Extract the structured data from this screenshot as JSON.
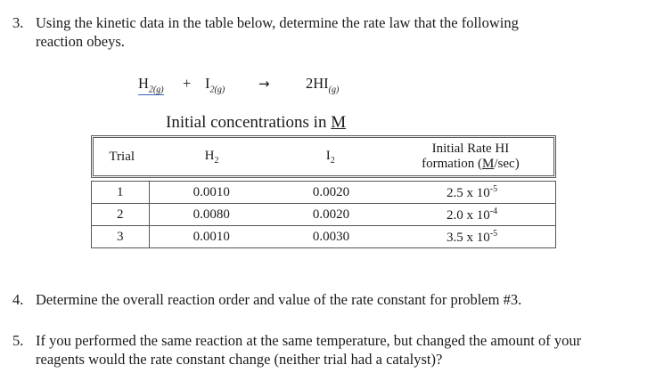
{
  "question3": {
    "number": "3.",
    "line1": "Using the kinetic data in the table below, determine the rate law that the following",
    "line2": "reaction obeys."
  },
  "equation": {
    "reactant1": "H",
    "reactant1_sub": "2(g)",
    "plus": "+",
    "reactant2": "I",
    "reactant2_sub": "2(g)",
    "arrow": "→",
    "product": "2HI",
    "product_sub": "(g)"
  },
  "table_caption": {
    "text": "Initial concentrations in ",
    "unit": "M"
  },
  "table": {
    "headers": {
      "trial": "Trial",
      "h2": "H",
      "h2_sub": "2",
      "i2": "I",
      "i2_sub": "2",
      "rate_line1": "Initial Rate HI",
      "rate_line2_prefix": "formation (",
      "rate_line2_unit": "M",
      "rate_line2_suffix": "/sec)"
    },
    "rows": [
      {
        "trial": "1",
        "h2": "0.0010",
        "i2": "0.0020",
        "rate_base": "2.5 x 10",
        "rate_exp": "-5"
      },
      {
        "trial": "2",
        "h2": "0.0080",
        "i2": "0.0020",
        "rate_base": "2.0 x 10",
        "rate_exp": "-4"
      },
      {
        "trial": "3",
        "h2": "0.0010",
        "i2": "0.0030",
        "rate_base": "3.5 x 10",
        "rate_exp": "-5"
      }
    ]
  },
  "question4": {
    "number": "4.",
    "line1": "Determine the overall reaction order and value of the rate constant for problem #3."
  },
  "question5": {
    "number": "5.",
    "line1": "If you performed the same reaction at the same temperature, but changed the amount of your",
    "line2": "reagents would the rate constant change (neither trial had a catalyst)?"
  }
}
